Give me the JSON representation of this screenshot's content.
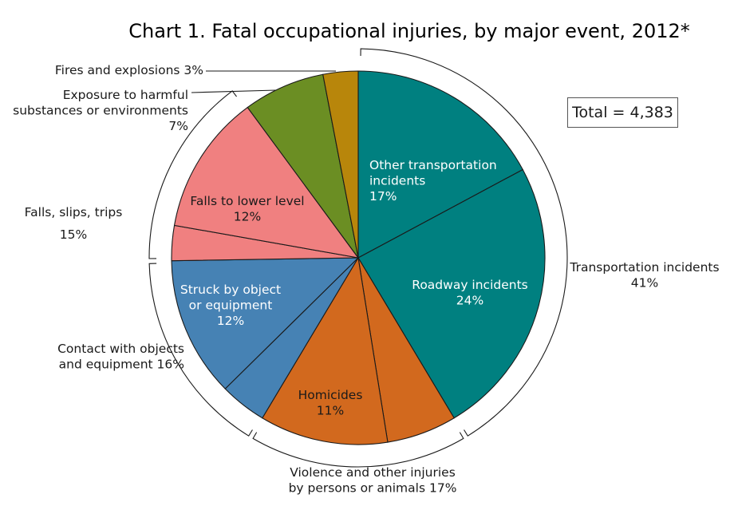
{
  "chart_data": {
    "type": "pie",
    "title": "Chart 1. Fatal occupational injuries, by major event, 2012*",
    "total_label": "Total = 4,383",
    "slices": [
      {
        "id": "other-transport",
        "value": 17,
        "color": "#008080",
        "group": "transport",
        "lines": [
          "Other transportation",
          "incidents",
          "17%"
        ],
        "text_color": "#ffffff"
      },
      {
        "id": "roadway",
        "value": 24,
        "color": "#008080",
        "group": "transport",
        "lines": [
          "Roadway incidents",
          "24%"
        ],
        "text_color": "#ffffff"
      },
      {
        "id": "violence-other",
        "value": 6,
        "color": "#D2691E",
        "group": "violence",
        "lines": []
      },
      {
        "id": "homicides",
        "value": 11,
        "color": "#D2691E",
        "group": "violence",
        "lines": [
          "Homicides",
          "11%"
        ],
        "text_color": "#1a1a1a"
      },
      {
        "id": "contact-other",
        "value": 4,
        "color": "#4682B4",
        "group": "contact",
        "lines": []
      },
      {
        "id": "struck-by",
        "value": 12,
        "color": "#4682B4",
        "group": "contact",
        "lines": [
          "Struck by object",
          "or equipment",
          "12%"
        ],
        "text_color": "#ffffff"
      },
      {
        "id": "falls-other",
        "value": 3,
        "color": "#F08080",
        "group": "falls",
        "lines": []
      },
      {
        "id": "falls-lower",
        "value": 12,
        "color": "#F08080",
        "group": "falls",
        "lines": [
          "Falls to lower level",
          "12%"
        ],
        "text_color": "#1a1a1a"
      },
      {
        "id": "exposure",
        "value": 7,
        "color": "#6B8E23",
        "group": "exposure",
        "lines": []
      },
      {
        "id": "fires",
        "value": 3,
        "color": "#B8860B",
        "group": "fires",
        "lines": []
      }
    ],
    "groups": [
      {
        "id": "transport",
        "lines": [
          "Transportation incidents",
          "41%"
        ]
      },
      {
        "id": "violence",
        "lines": [
          "Violence and other injuries",
          "by persons or animals  17%"
        ]
      },
      {
        "id": "contact",
        "lines": [
          "Contact with objects",
          "and equipment 16%"
        ]
      },
      {
        "id": "falls",
        "lines": [
          "Falls, slips, trips",
          "15%"
        ]
      },
      {
        "id": "exposure",
        "lines": [
          "Exposure to harmful",
          "substances or environments",
          "7%"
        ]
      },
      {
        "id": "fires",
        "lines": [
          "Fires and explosions  3%"
        ]
      }
    ]
  }
}
